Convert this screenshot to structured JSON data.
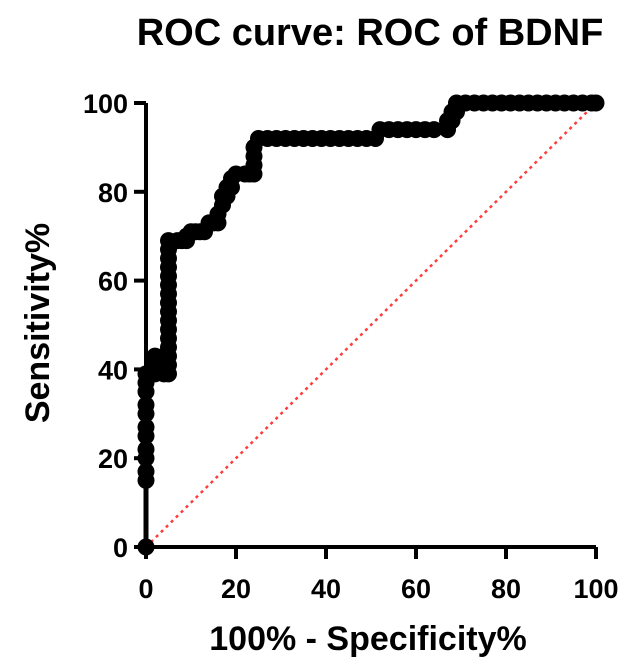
{
  "chart_data": {
    "type": "line",
    "title": "ROC curve: ROC of BDNF",
    "xlabel": "100% - Specificity%",
    "ylabel": "Sensitivity%",
    "xlim": [
      0,
      100
    ],
    "ylim": [
      0,
      100
    ],
    "xticks": [
      0,
      20,
      40,
      60,
      80,
      100
    ],
    "yticks": [
      0,
      20,
      40,
      60,
      80,
      100
    ],
    "grid": false,
    "series": [
      {
        "marker": "circle",
        "color": "#000000",
        "points": [
          [
            0,
            0
          ],
          [
            0,
            15
          ],
          [
            0,
            17
          ],
          [
            0,
            20
          ],
          [
            0,
            22
          ],
          [
            0,
            25
          ],
          [
            0,
            27
          ],
          [
            0,
            30
          ],
          [
            0,
            32
          ],
          [
            0,
            35
          ],
          [
            0,
            37
          ],
          [
            0,
            39
          ],
          [
            2,
            39
          ],
          [
            2,
            41
          ],
          [
            2,
            43
          ],
          [
            4,
            43
          ],
          [
            4,
            39
          ],
          [
            5,
            39
          ],
          [
            5,
            41
          ],
          [
            5,
            43
          ],
          [
            5,
            45
          ],
          [
            5,
            47
          ],
          [
            5,
            49
          ],
          [
            5,
            51
          ],
          [
            5,
            53
          ],
          [
            5,
            55
          ],
          [
            5,
            57
          ],
          [
            5,
            59
          ],
          [
            5,
            61
          ],
          [
            5,
            63
          ],
          [
            5,
            65
          ],
          [
            5,
            67
          ],
          [
            5,
            69
          ],
          [
            7,
            69
          ],
          [
            8,
            69
          ],
          [
            9,
            69
          ],
          [
            9,
            70
          ],
          [
            10,
            71
          ],
          [
            11,
            71
          ],
          [
            12,
            71
          ],
          [
            13,
            71
          ],
          [
            14,
            73
          ],
          [
            15,
            73
          ],
          [
            16,
            73
          ],
          [
            16,
            75
          ],
          [
            17,
            77
          ],
          [
            17,
            79
          ],
          [
            18,
            79
          ],
          [
            18,
            81
          ],
          [
            19,
            81
          ],
          [
            19,
            83
          ],
          [
            20,
            84
          ],
          [
            22,
            84
          ],
          [
            23,
            84
          ],
          [
            24,
            84
          ],
          [
            24,
            86
          ],
          [
            24,
            88
          ],
          [
            24,
            90
          ],
          [
            25,
            92
          ],
          [
            27,
            92
          ],
          [
            29,
            92
          ],
          [
            31,
            92
          ],
          [
            33,
            92
          ],
          [
            35,
            92
          ],
          [
            37,
            92
          ],
          [
            39,
            92
          ],
          [
            41,
            92
          ],
          [
            43,
            92
          ],
          [
            45,
            92
          ],
          [
            47,
            92
          ],
          [
            49,
            92
          ],
          [
            51,
            92
          ],
          [
            52,
            94
          ],
          [
            54,
            94
          ],
          [
            56,
            94
          ],
          [
            58,
            94
          ],
          [
            60,
            94
          ],
          [
            62,
            94
          ],
          [
            64,
            94
          ],
          [
            67,
            94
          ],
          [
            67,
            96
          ],
          [
            68,
            96
          ],
          [
            68,
            98
          ],
          [
            69,
            98
          ],
          [
            69,
            100
          ],
          [
            71,
            100
          ],
          [
            73,
            100
          ],
          [
            75,
            100
          ],
          [
            77,
            100
          ],
          [
            79,
            100
          ],
          [
            81,
            100
          ],
          [
            83,
            100
          ],
          [
            85,
            100
          ],
          [
            87,
            100
          ],
          [
            89,
            100
          ],
          [
            91,
            100
          ],
          [
            93,
            100
          ],
          [
            95,
            100
          ],
          [
            97,
            100
          ],
          [
            99,
            100
          ],
          [
            100,
            100
          ]
        ]
      }
    ],
    "reference_line": {
      "from": [
        0,
        0
      ],
      "to": [
        100,
        100
      ],
      "color": "#ff3b3b",
      "style": "dotted"
    }
  }
}
